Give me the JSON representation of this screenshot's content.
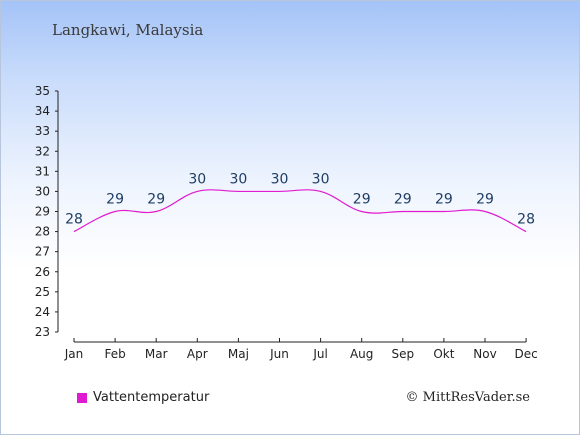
{
  "chart_data": {
    "type": "line",
    "title": "Langkawi, Malaysia",
    "categories": [
      "Jan",
      "Feb",
      "Mar",
      "Apr",
      "Maj",
      "Jun",
      "Jul",
      "Aug",
      "Sep",
      "Okt",
      "Nov",
      "Dec"
    ],
    "series": [
      {
        "name": "Vattentemperatur",
        "values": [
          28,
          29,
          29,
          30,
          30,
          30,
          30,
          29,
          29,
          29,
          29,
          28
        ],
        "color": "#e01ad0"
      }
    ],
    "ylim": [
      23,
      35
    ],
    "yticks": [
      23,
      24,
      25,
      26,
      27,
      28,
      29,
      30,
      31,
      32,
      33,
      34,
      35
    ],
    "grid": false,
    "legend": "bottom-left"
  },
  "legend": {
    "label": "Vattentemperatur",
    "color": "#e01ad0"
  },
  "copyright": "© MittResVader.se"
}
